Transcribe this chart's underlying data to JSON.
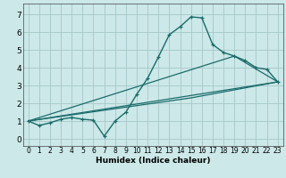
{
  "xlabel": "Humidex (Indice chaleur)",
  "background_color": "#cce8e8",
  "grid_color": "#aacccc",
  "line_color": "#1a6b6b",
  "xlim": [
    -0.5,
    23.5
  ],
  "ylim": [
    -0.4,
    7.6
  ],
  "xticks": [
    0,
    1,
    2,
    3,
    4,
    5,
    6,
    7,
    8,
    9,
    10,
    11,
    12,
    13,
    14,
    15,
    16,
    17,
    18,
    19,
    20,
    21,
    22,
    23
  ],
  "yticks": [
    0,
    1,
    2,
    3,
    4,
    5,
    6,
    7
  ],
  "curve1_x": [
    0,
    1,
    2,
    3,
    4,
    5,
    6,
    7,
    8,
    9,
    10,
    11,
    12,
    13,
    14,
    15,
    16,
    17,
    18,
    19,
    20,
    21,
    22,
    23
  ],
  "curve1_y": [
    1.0,
    0.75,
    0.9,
    1.1,
    1.2,
    1.1,
    1.05,
    0.15,
    1.0,
    1.5,
    2.5,
    3.4,
    4.6,
    5.85,
    6.3,
    6.85,
    6.8,
    5.3,
    4.85,
    4.65,
    4.4,
    4.0,
    3.9,
    3.2
  ],
  "line1_x": [
    0,
    23
  ],
  "line1_y": [
    1.0,
    3.2
  ],
  "line2_x": [
    0,
    15,
    23
  ],
  "line2_y": [
    1.0,
    2.3,
    3.2
  ],
  "line3_x": [
    0,
    19,
    23
  ],
  "line3_y": [
    1.0,
    4.65,
    3.2
  ],
  "xlabel_fontsize": 6.5,
  "tick_fontsize_x": 5.5,
  "tick_fontsize_y": 6.5
}
